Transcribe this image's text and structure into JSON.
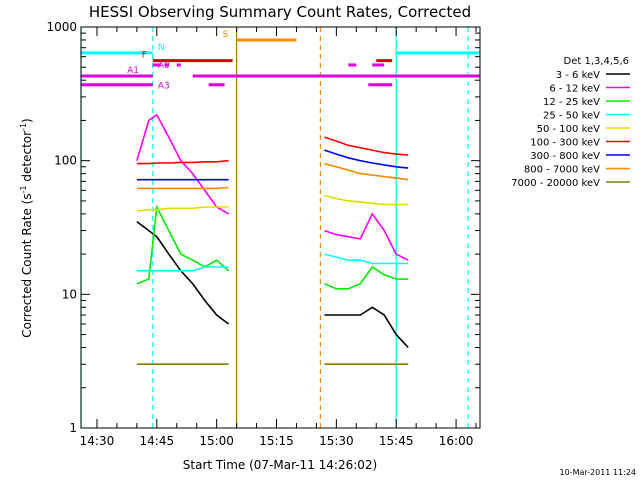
{
  "chart_data": {
    "type": "line",
    "title": "HESSI Observing Summary Count Rates, Corrected",
    "xlabel": "Start Time (07-Mar-11 14:26:02)",
    "ylabel": "Corrected Count Rate (s⁻¹ detector⁻¹)",
    "ylabel_main": "Corrected Count Rate (s",
    "ylabel_sup1": "-1",
    "ylabel_mid": " detector",
    "ylabel_sup2": "-1",
    "ylabel_end": ")",
    "date_stamp": "10-Mar-2011 11:24",
    "y_scale": "log",
    "ylim": [
      1,
      1000
    ],
    "xlim": [
      "14:26",
      "16:06"
    ],
    "x_ticks": [
      "14:30",
      "14:45",
      "15:00",
      "15:15",
      "15:30",
      "15:45",
      "16:00"
    ],
    "y_ticks": [
      "1",
      "10",
      "100",
      "1000"
    ],
    "legend_title": "Det 1,3,4,5,6",
    "legend_position": "right",
    "series": [
      {
        "name": "3 - 6 keV",
        "color": "#000000",
        "segments": [
          {
            "x": [
              "14:40",
              "14:43",
              "14:45",
              "14:48",
              "14:51",
              "14:54",
              "14:57",
              "15:00",
              "15:03"
            ],
            "y": [
              35,
              30,
              27,
              20,
              15,
              12,
              9,
              7,
              6
            ]
          },
          {
            "x": [
              "15:27",
              "15:30",
              "15:33",
              "15:36",
              "15:39",
              "15:42",
              "15:45",
              "15:48"
            ],
            "y": [
              7,
              7,
              7,
              7,
              8,
              7,
              5,
              4
            ]
          }
        ]
      },
      {
        "name": "6 - 12 keV",
        "color": "#ff00ff",
        "segments": [
          {
            "x": [
              "14:40",
              "14:43",
              "14:45",
              "14:48",
              "14:51",
              "14:54",
              "14:57",
              "15:00",
              "15:03"
            ],
            "y": [
              100,
              200,
              220,
              150,
              100,
              80,
              60,
              45,
              40
            ]
          },
          {
            "x": [
              "15:27",
              "15:30",
              "15:33",
              "15:36",
              "15:39",
              "15:42",
              "15:45",
              "15:48"
            ],
            "y": [
              30,
              28,
              27,
              26,
              40,
              30,
              20,
              18
            ]
          }
        ]
      },
      {
        "name": "12 - 25 keV",
        "color": "#00ee00",
        "segments": [
          {
            "x": [
              "14:40",
              "14:43",
              "14:45",
              "14:48",
              "14:51",
              "14:54",
              "14:57",
              "15:00",
              "15:03"
            ],
            "y": [
              12,
              13,
              45,
              30,
              20,
              18,
              16,
              18,
              15
            ]
          },
          {
            "x": [
              "15:27",
              "15:30",
              "15:33",
              "15:36",
              "15:39",
              "15:42",
              "15:45",
              "15:48"
            ],
            "y": [
              12,
              11,
              11,
              12,
              16,
              14,
              13,
              13
            ]
          }
        ]
      },
      {
        "name": "25 - 50 keV",
        "color": "#00ffff",
        "segments": [
          {
            "x": [
              "14:40",
              "14:43",
              "14:45",
              "14:48",
              "14:51",
              "14:54",
              "14:57",
              "15:00",
              "15:03"
            ],
            "y": [
              15,
              15,
              15,
              15,
              15,
              15,
              16,
              16,
              16
            ]
          },
          {
            "x": [
              "15:27",
              "15:30",
              "15:33",
              "15:36",
              "15:39",
              "15:42",
              "15:45",
              "15:48"
            ],
            "y": [
              20,
              19,
              18,
              18,
              17,
              17,
              17,
              17
            ]
          }
        ]
      },
      {
        "name": "50 - 100 keV",
        "color": "#dddd00",
        "segments": [
          {
            "x": [
              "14:40",
              "14:43",
              "14:45",
              "14:48",
              "14:51",
              "14:54",
              "14:57",
              "15:00",
              "15:03"
            ],
            "y": [
              42,
              43,
              43,
              44,
              44,
              44,
              45,
              45,
              45
            ]
          },
          {
            "x": [
              "15:27",
              "15:30",
              "15:33",
              "15:36",
              "15:39",
              "15:42",
              "15:45",
              "15:48"
            ],
            "y": [
              55,
              52,
              50,
              49,
              48,
              47,
              47,
              47
            ]
          }
        ]
      },
      {
        "name": "100 - 300 keV",
        "color": "#ff0000",
        "segments": [
          {
            "x": [
              "14:40",
              "14:43",
              "14:45",
              "14:48",
              "14:51",
              "14:54",
              "14:57",
              "15:00",
              "15:03"
            ],
            "y": [
              95,
              95,
              96,
              96,
              97,
              97,
              98,
              98,
              100
            ]
          },
          {
            "x": [
              "15:27",
              "15:30",
              "15:33",
              "15:36",
              "15:39",
              "15:42",
              "15:45",
              "15:48"
            ],
            "y": [
              150,
              140,
              130,
              125,
              120,
              115,
              112,
              110
            ]
          }
        ]
      },
      {
        "name": "300 - 800 keV",
        "color": "#0000ff",
        "segments": [
          {
            "x": [
              "14:40",
              "14:43",
              "14:45",
              "14:48",
              "14:51",
              "14:54",
              "14:57",
              "15:00",
              "15:03"
            ],
            "y": [
              72,
              72,
              72,
              72,
              72,
              72,
              72,
              72,
              72
            ]
          },
          {
            "x": [
              "15:27",
              "15:30",
              "15:33",
              "15:36",
              "15:39",
              "15:42",
              "15:45",
              "15:48"
            ],
            "y": [
              120,
              112,
              105,
              100,
              96,
              93,
              90,
              88
            ]
          }
        ]
      },
      {
        "name": "800 - 7000 keV",
        "color": "#ff8800",
        "segments": [
          {
            "x": [
              "14:40",
              "14:43",
              "14:45",
              "14:48",
              "14:51",
              "14:54",
              "14:57",
              "15:00",
              "15:03"
            ],
            "y": [
              62,
              62,
              62,
              62,
              62,
              62,
              62,
              62,
              63
            ]
          },
          {
            "x": [
              "15:27",
              "15:30",
              "15:33",
              "15:36",
              "15:39",
              "15:42",
              "15:45",
              "15:48"
            ],
            "y": [
              95,
              90,
              85,
              80,
              78,
              76,
              74,
              72
            ]
          }
        ]
      },
      {
        "name": "7000 - 20000 keV",
        "color": "#808000",
        "segments": [
          {
            "x": [
              "14:40",
              "14:43",
              "14:45",
              "14:48",
              "14:51",
              "14:54",
              "14:57",
              "15:00",
              "15:03"
            ],
            "y": [
              3,
              3,
              3,
              3,
              3,
              3,
              3,
              3,
              3
            ]
          },
          {
            "x": [
              "15:27",
              "15:30",
              "15:33",
              "15:36",
              "15:39",
              "15:42",
              "15:45",
              "15:48"
            ],
            "y": [
              3,
              3,
              3,
              3,
              3,
              3,
              3,
              3
            ]
          }
        ]
      }
    ],
    "vertical_lines": [
      {
        "x": "14:26",
        "color": "#00ffff",
        "style": "solid"
      },
      {
        "x": "14:44",
        "color": "#00ffff",
        "style": "dashed"
      },
      {
        "x": "15:05",
        "color": "#aa7700",
        "style": "solid"
      },
      {
        "x": "15:26",
        "color": "#ff8800",
        "style": "dashed"
      },
      {
        "x": "15:45",
        "color": "#00ffff",
        "style": "solid"
      },
      {
        "x": "16:03",
        "color": "#00ffff",
        "style": "dashed"
      }
    ],
    "flag_bars": [
      {
        "label": "N",
        "color": "#00ffff",
        "y": 640,
        "segments": [
          [
            "14:26",
            "14:44"
          ],
          [
            "15:45",
            "16:06"
          ]
        ]
      },
      {
        "label": "S",
        "color": "#ff8800",
        "y": 800,
        "segments": [
          [
            "15:05",
            "15:20"
          ]
        ]
      },
      {
        "label": "F",
        "color": "#dd0000",
        "y": 560,
        "segments": [
          [
            "14:44",
            "15:04"
          ],
          [
            "15:40",
            "15:44"
          ]
        ]
      },
      {
        "label": "A0",
        "color": "#dd00dd",
        "y": 520,
        "segments": [
          [
            "14:44",
            "14:46"
          ],
          [
            "14:47",
            "14:48"
          ],
          [
            "14:50",
            "14:51"
          ],
          [
            "15:33",
            "15:35"
          ],
          [
            "15:39",
            "15:42"
          ]
        ]
      },
      {
        "label": "A1",
        "color": "#dd00dd",
        "y": 430,
        "segments": [
          [
            "14:26",
            "14:44"
          ],
          [
            "14:54",
            "16:06"
          ]
        ]
      },
      {
        "label": "A3",
        "color": "#dd00dd",
        "y": 370,
        "segments": [
          [
            "14:26",
            "14:44"
          ],
          [
            "14:58",
            "15:02"
          ],
          [
            "15:38",
            "15:44"
          ]
        ]
      }
    ]
  }
}
